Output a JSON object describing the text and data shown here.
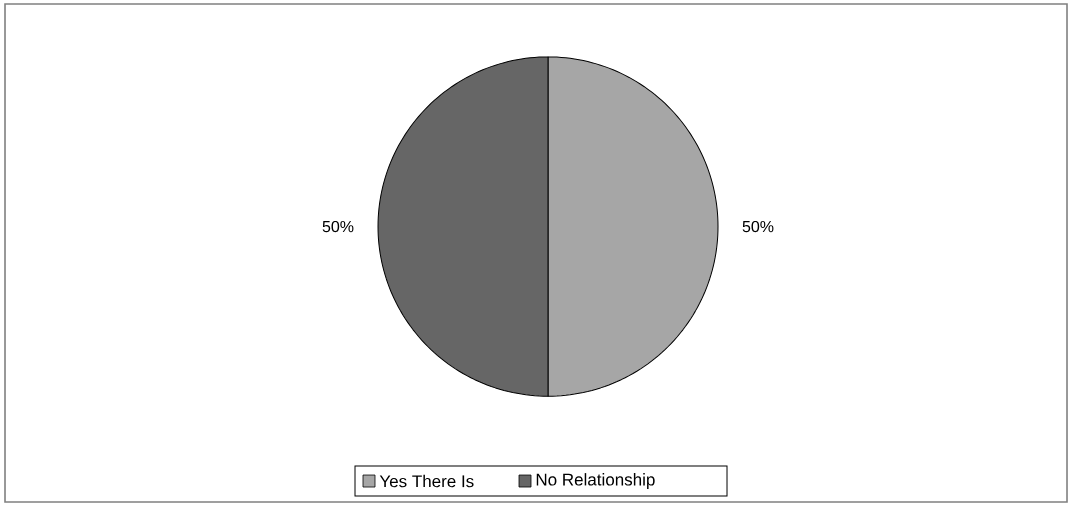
{
  "chart_data": {
    "type": "pie",
    "categories": [
      "Yes There Is",
      "No Relationship"
    ],
    "values": [
      50,
      50
    ],
    "colors": [
      "#a6a6a6",
      "#666666"
    ],
    "value_labels": [
      "50%",
      "50%"
    ],
    "legend": "bottom"
  }
}
